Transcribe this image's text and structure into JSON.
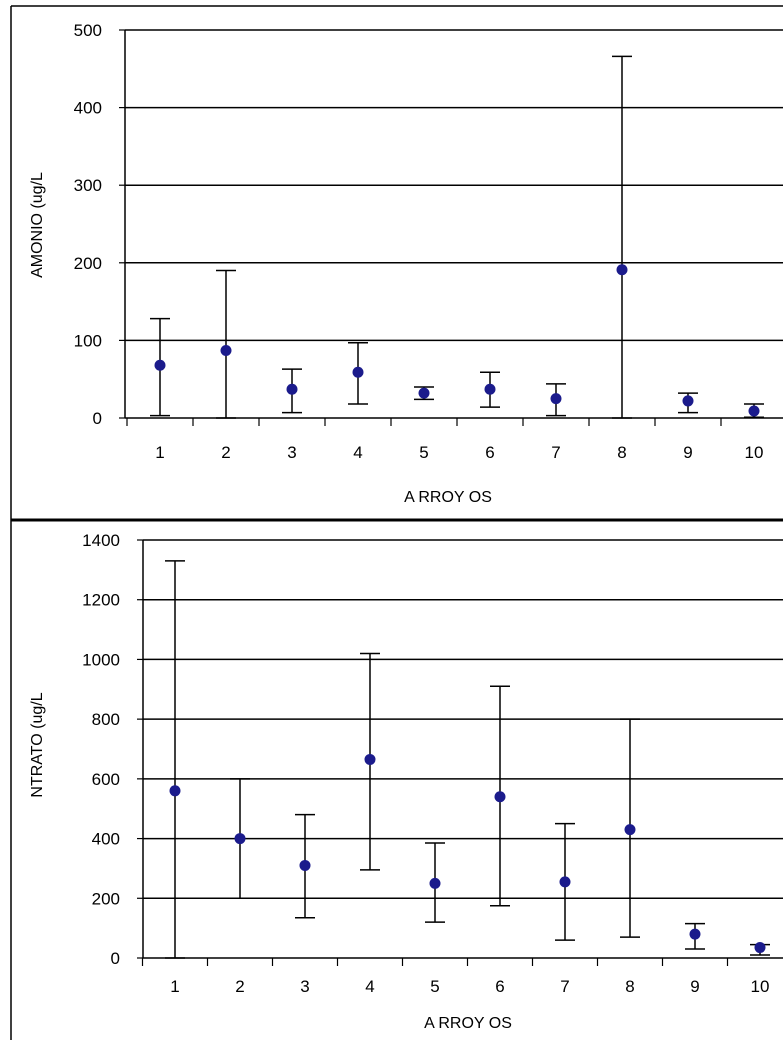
{
  "chart_data": [
    {
      "type": "scatter",
      "xlabel": "A RROY OS",
      "ylabel": "AMONIO (ug/L",
      "categories": [
        "1",
        "2",
        "3",
        "4",
        "5",
        "6",
        "7",
        "8",
        "9",
        "10"
      ],
      "ylim": [
        0,
        500
      ],
      "yticks": [
        0,
        100,
        200,
        300,
        400,
        500
      ],
      "series": [
        {
          "values": [
            68,
            87,
            37,
            59,
            32,
            37,
            25,
            191,
            22,
            9
          ],
          "error_low": [
            3,
            0,
            7,
            18,
            24,
            14,
            3,
            0,
            7,
            1
          ],
          "error_high": [
            128,
            190,
            63,
            97,
            40,
            59,
            44,
            466,
            32,
            18
          ]
        }
      ],
      "grid": true,
      "marker_color": "#1b1b8c"
    },
    {
      "type": "scatter",
      "xlabel": "A RROY OS",
      "ylabel": "NTRATO (ug/L",
      "categories": [
        "1",
        "2",
        "3",
        "4",
        "5",
        "6",
        "7",
        "8",
        "9",
        "10"
      ],
      "ylim": [
        0,
        1400
      ],
      "yticks": [
        0,
        200,
        400,
        600,
        800,
        1000,
        1200,
        1400
      ],
      "series": [
        {
          "values": [
            560,
            400,
            310,
            665,
            250,
            540,
            255,
            430,
            80,
            35
          ],
          "error_low": [
            0,
            200,
            135,
            295,
            120,
            175,
            60,
            70,
            30,
            10
          ],
          "error_high": [
            1330,
            600,
            480,
            1020,
            385,
            910,
            450,
            800,
            115,
            45
          ]
        }
      ],
      "grid": true,
      "marker_color": "#1b1b8c"
    }
  ]
}
